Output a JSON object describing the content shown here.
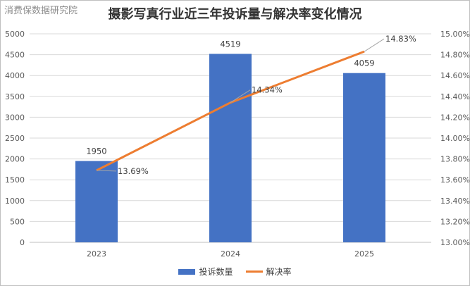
{
  "watermark": "消费保数据研究院",
  "chart_data": {
    "type": "bar-line-combo",
    "title": "摄影写真行业近三年投诉量与解决率变化情况",
    "categories": [
      "2023",
      "2024",
      "2025"
    ],
    "series": [
      {
        "name": "投诉数量",
        "type": "bar",
        "axis": "left",
        "color": "#4472C4",
        "values": [
          1950,
          4519,
          4059
        ],
        "labels": [
          "1950",
          "4519",
          "4059"
        ]
      },
      {
        "name": "解决率",
        "type": "line",
        "axis": "right",
        "color": "#ED7D31",
        "values": [
          13.69,
          14.34,
          14.83
        ],
        "labels": [
          "13.69%",
          "14.34%",
          "14.83%"
        ]
      }
    ],
    "y_left": {
      "range": [
        0,
        5000
      ],
      "ticks": [
        0,
        500,
        1000,
        1500,
        2000,
        2500,
        3000,
        3500,
        4000,
        4500,
        5000
      ]
    },
    "y_right": {
      "range": [
        13.0,
        15.0
      ],
      "ticks": [
        "13.00%",
        "13.20%",
        "13.40%",
        "13.60%",
        "13.80%",
        "14.00%",
        "14.20%",
        "14.40%",
        "14.60%",
        "14.80%",
        "15.00%"
      ]
    },
    "legend": {
      "position": "bottom",
      "items": [
        "投诉数量",
        "解决率"
      ]
    },
    "grid": true
  }
}
